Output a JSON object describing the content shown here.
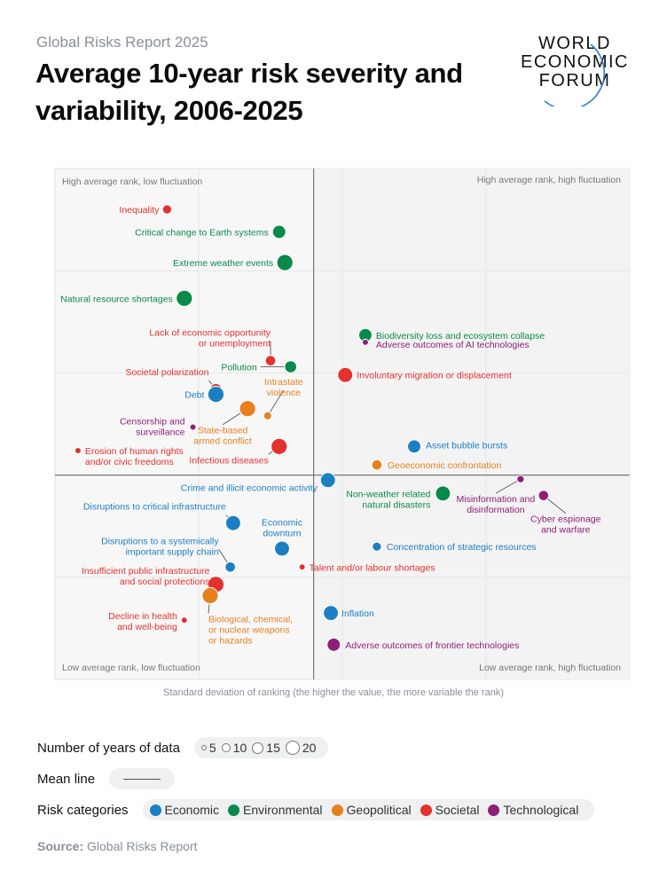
{
  "header": {
    "kicker": "Global Risks Report 2025",
    "title": "Average 10-year risk severity and variability, 2006-2025",
    "logo_lines": [
      "WORLD",
      "ECONOMIC",
      "FORUM"
    ]
  },
  "chart_data": {
    "type": "scatter",
    "xlabel": "Standard deviation of ranking (the higher the value, the more variable the rank)",
    "ylabel": "",
    "quadrants": {
      "top_left": "High average rank, low fluctuation",
      "top_right": "High average rank, high fluctuation",
      "bottom_left": "Low average rank, low fluctuation",
      "bottom_right": "Low average rank, high fluctuation"
    },
    "colors": {
      "Economic": "#1b7fc4",
      "Environmental": "#0a8a4a",
      "Geopolitical": "#e8801e",
      "Societal": "#e3312d",
      "Technological": "#8e1e78"
    },
    "points": [
      {
        "label": "Inequality",
        "category": "Societal",
        "x": 0.39,
        "y": 2.6,
        "years": 8
      },
      {
        "label": "Critical change to Earth systems",
        "category": "Environmental",
        "x": 0.78,
        "y": 2.38,
        "years": 15
      },
      {
        "label": "Extreme weather events",
        "category": "Environmental",
        "x": 0.8,
        "y": 2.08,
        "years": 20
      },
      {
        "label": "Natural resource shortages",
        "category": "Environmental",
        "x": 0.45,
        "y": 1.73,
        "years": 20
      },
      {
        "label": "Biodiversity loss and ecosystem collapse",
        "category": "Environmental",
        "x": 1.08,
        "y": 1.37,
        "years": 15
      },
      {
        "label": "Adverse outcomes of AI technologies",
        "category": "Technological",
        "x": 1.08,
        "y": 1.3,
        "years": 3
      },
      {
        "label": "Lack of economic opportunity or unemployment",
        "category": "Societal",
        "x": 0.75,
        "y": 1.12,
        "years": 10
      },
      {
        "label": "Pollution",
        "category": "Environmental",
        "x": 0.82,
        "y": 1.06,
        "years": 13
      },
      {
        "label": "Involuntary migration or displacement",
        "category": "Societal",
        "x": 1.01,
        "y": 0.98,
        "years": 18
      },
      {
        "label": "Societal polarization",
        "category": "Societal",
        "x": 0.56,
        "y": 0.84,
        "years": 12
      },
      {
        "label": "Debt",
        "category": "Economic",
        "x": 0.56,
        "y": 0.79,
        "years": 20
      },
      {
        "label": "Intrastate violence",
        "category": "Geopolitical",
        "x": 0.74,
        "y": 0.58,
        "years": 6
      },
      {
        "label": "State-based armed conflict",
        "category": "Geopolitical",
        "x": 0.67,
        "y": 0.65,
        "years": 20
      },
      {
        "label": "Censorship and surveillance",
        "category": "Technological",
        "x": 0.48,
        "y": 0.47,
        "years": 3
      },
      {
        "label": "Erosion of human rights and/or civic freedoms",
        "category": "Societal",
        "x": 0.08,
        "y": 0.24,
        "years": 3
      },
      {
        "label": "Infectious diseases",
        "category": "Societal",
        "x": 0.78,
        "y": 0.28,
        "years": 20
      },
      {
        "label": "Asset bubble bursts",
        "category": "Economic",
        "x": 1.25,
        "y": 0.28,
        "years": 15
      },
      {
        "label": "Geoeconomic confrontation",
        "category": "Geopolitical",
        "x": 1.12,
        "y": 0.1,
        "years": 10
      },
      {
        "label": "Crime and illicit economic activity",
        "category": "Economic",
        "x": 0.95,
        "y": -0.05,
        "years": 18
      },
      {
        "label": "Non-weather related natural disasters",
        "category": "Environmental",
        "x": 1.35,
        "y": -0.18,
        "years": 18
      },
      {
        "label": "Misinformation and disinformation",
        "category": "Technological",
        "x": 1.62,
        "y": -0.04,
        "years": 5
      },
      {
        "label": "Cyber espionage and warfare",
        "category": "Technological",
        "x": 1.7,
        "y": -0.2,
        "years": 10
      },
      {
        "label": "Disruptions to critical infrastructure",
        "category": "Economic",
        "x": 0.62,
        "y": -0.47,
        "years": 18
      },
      {
        "label": "Economic downturn",
        "category": "Economic",
        "x": 0.79,
        "y": -0.72,
        "years": 18
      },
      {
        "label": "Concentration of strategic resources",
        "category": "Economic",
        "x": 1.12,
        "y": -0.7,
        "years": 8
      },
      {
        "label": "Disruptions to a systemically important supply chain",
        "category": "Economic",
        "x": 0.61,
        "y": -0.9,
        "years": 10
      },
      {
        "label": "Talent and/or labour shortages",
        "category": "Societal",
        "x": 0.86,
        "y": -0.9,
        "years": 3
      },
      {
        "label": "Insufficient public infrastructure and social protections",
        "category": "Societal",
        "x": 0.56,
        "y": -1.07,
        "years": 20
      },
      {
        "label": "Biological, chemical, or nuclear weapons or hazards",
        "category": "Geopolitical",
        "x": 0.54,
        "y": -1.18,
        "years": 20
      },
      {
        "label": "Decline in health and well-being",
        "category": "Societal",
        "x": 0.45,
        "y": -1.42,
        "years": 3
      },
      {
        "label": "Inflation",
        "category": "Economic",
        "x": 0.96,
        "y": -1.35,
        "years": 18
      },
      {
        "label": "Adverse outcomes of frontier technologies",
        "category": "Technological",
        "x": 0.97,
        "y": -1.66,
        "years": 15
      }
    ]
  },
  "legend": {
    "years_label": "Number of years of data",
    "years": [
      "5",
      "10",
      "15",
      "20"
    ],
    "mean_label": "Mean line",
    "categories_label": "Risk categories",
    "categories": [
      {
        "name": "Economic",
        "color": "#1b7fc4"
      },
      {
        "name": "Environmental",
        "color": "#0a8a4a"
      },
      {
        "name": "Geopolitical",
        "color": "#e8801e"
      },
      {
        "name": "Societal",
        "color": "#e3312d"
      },
      {
        "name": "Technological",
        "color": "#8e1e78"
      }
    ]
  },
  "source": {
    "label": "Source:",
    "text": "Global Risks Report"
  }
}
